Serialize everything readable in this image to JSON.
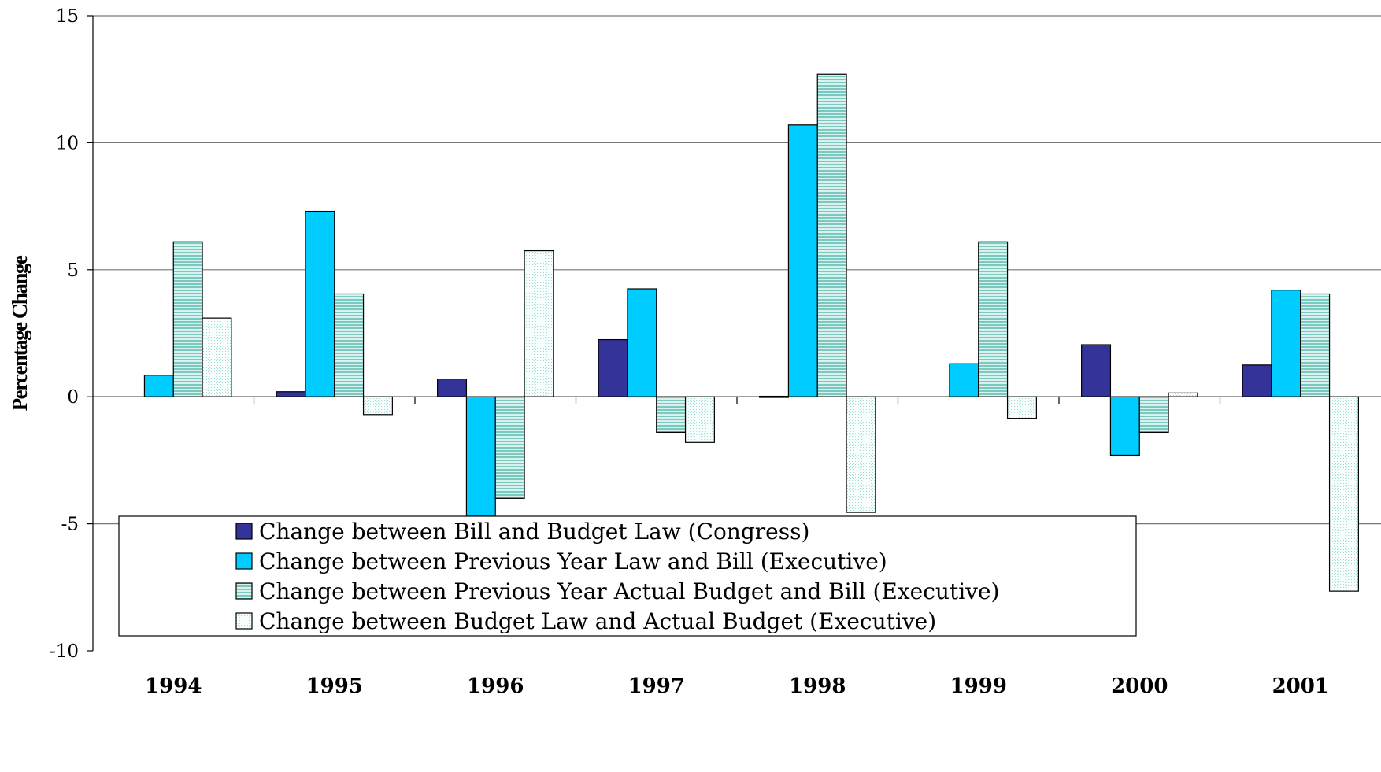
{
  "chart_data": {
    "type": "bar",
    "title": "",
    "xlabel": "",
    "ylabel": "Percentage Change",
    "ylim": [
      -10,
      15
    ],
    "yticks": [
      15,
      10,
      5,
      0,
      -5,
      -10
    ],
    "grid": true,
    "legend_position": "bottom-inside",
    "categories": [
      "1994",
      "1995",
      "1996",
      "1997",
      "1998",
      "1999",
      "2000",
      "2001"
    ],
    "series": [
      {
        "name": "Change between Bill and Budget Law (Congress)",
        "color": "#333399",
        "pattern": "solid",
        "values": [
          null,
          0.2,
          0.7,
          2.25,
          0.02,
          null,
          2.05,
          1.25
        ]
      },
      {
        "name": "Change between Previous Year Law and Bill (Executive)",
        "color": "#00ccff",
        "pattern": "solid",
        "values": [
          0.85,
          7.3,
          -4.7,
          4.25,
          10.7,
          1.3,
          -2.3,
          4.2
        ]
      },
      {
        "name": "Change between Previous Year Actual Budget and Bill (Executive)",
        "color": "#a8ded8",
        "pattern": "horizontal-lines",
        "values": [
          6.1,
          4.05,
          -4.0,
          -1.4,
          12.7,
          6.1,
          -1.4,
          4.05
        ]
      },
      {
        "name": "Change between Budget Law and Actual Budget (Executive)",
        "color": "#eefcfb",
        "pattern": "fine-dots",
        "values": [
          3.1,
          -0.7,
          5.75,
          -1.8,
          -4.55,
          -0.85,
          0.15,
          -7.65
        ]
      }
    ]
  }
}
